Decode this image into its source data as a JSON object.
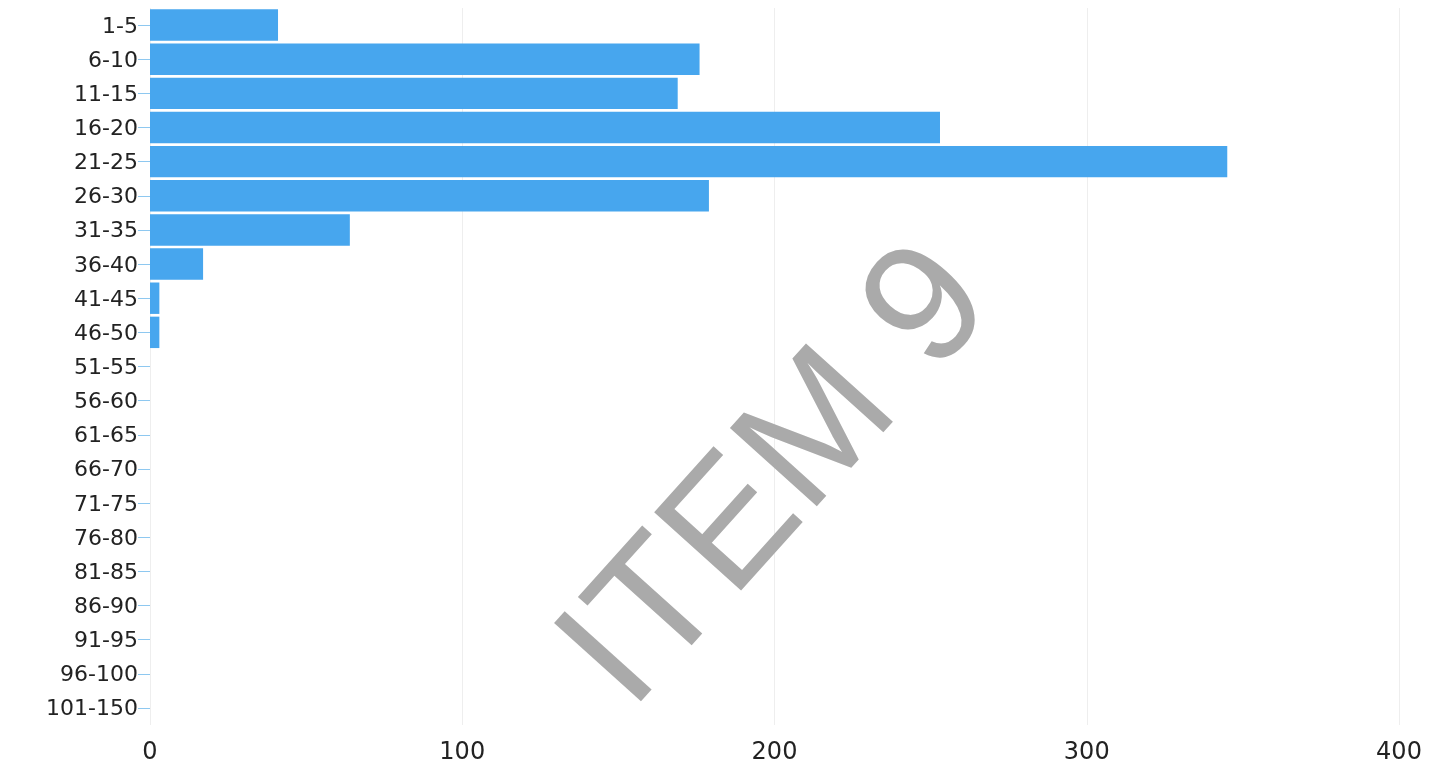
{
  "chart_data": {
    "type": "bar",
    "orientation": "horizontal",
    "categories": [
      "1-5",
      "6-10",
      "11-15",
      "16-20",
      "21-25",
      "26-30",
      "31-35",
      "36-40",
      "41-45",
      "46-50",
      "51-55",
      "56-60",
      "61-65",
      "66-70",
      "71-75",
      "76-80",
      "81-85",
      "86-90",
      "91-95",
      "96-100",
      "101-150"
    ],
    "values": [
      41,
      176,
      169,
      253,
      345,
      179,
      64,
      17,
      3,
      3,
      0,
      0,
      0,
      0,
      0,
      0,
      0,
      0,
      0,
      0,
      0
    ],
    "color": "#47a6ee",
    "xlim": [
      0,
      400
    ],
    "xticks": [
      0,
      100,
      200,
      300,
      400
    ],
    "grid": "x",
    "annotations": [
      "ITEM 9"
    ]
  }
}
